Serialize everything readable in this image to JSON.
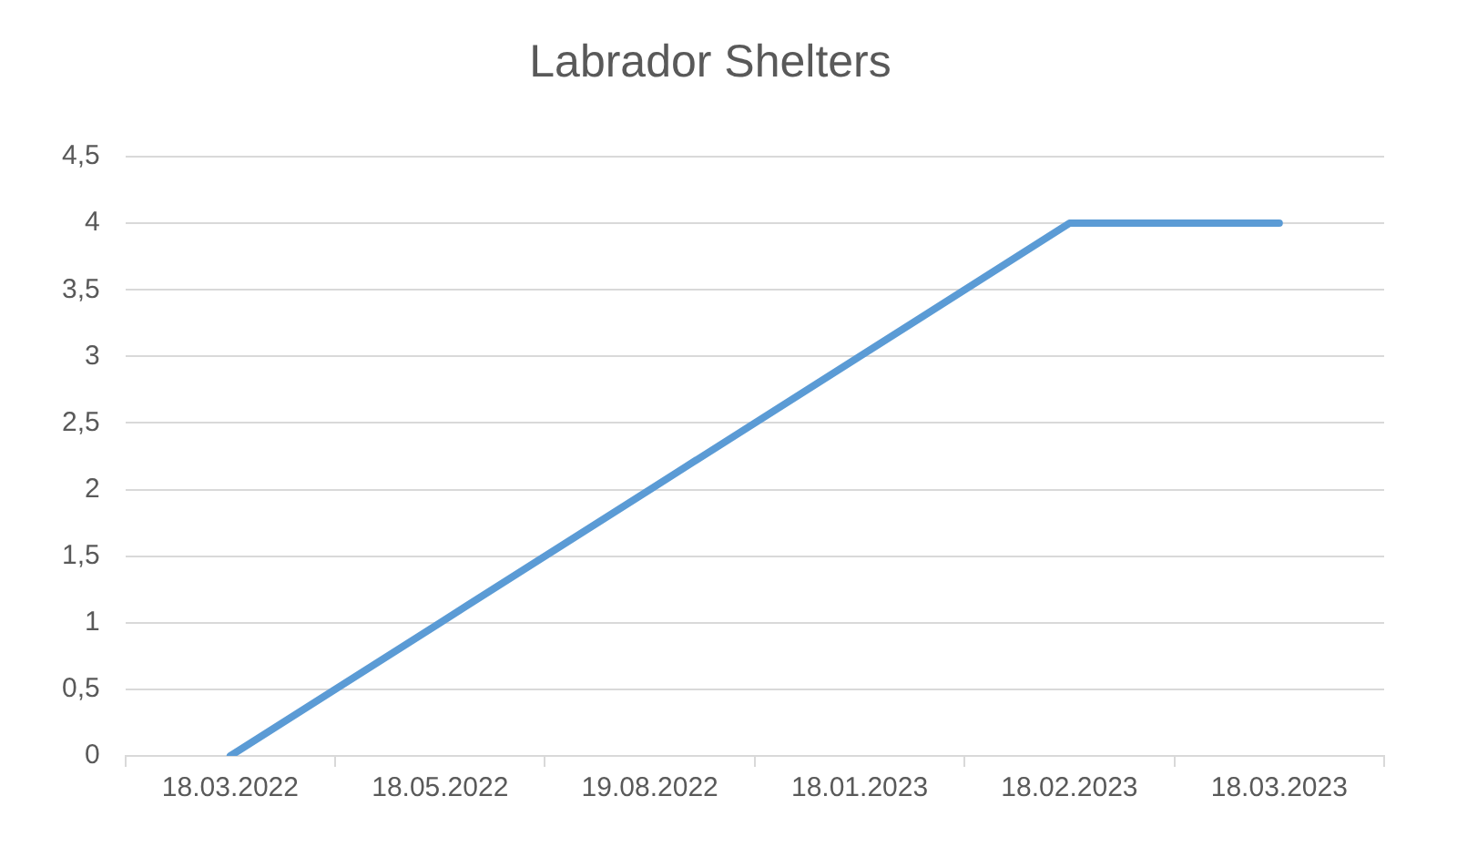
{
  "chart_data": {
    "type": "line",
    "title": "Labrador Shelters",
    "categories": [
      "18.03.2022",
      "18.05.2022",
      "19.08.2022",
      "18.01.2023",
      "18.02.2023",
      "18.03.2023"
    ],
    "series": [
      {
        "color": "#5b9bd5",
        "values": [
          0,
          1,
          2,
          3,
          4,
          4
        ]
      }
    ],
    "ylim": [
      0,
      4.5
    ],
    "yticks": [
      0,
      {
        "value": 0.5,
        "label": "0,5"
      },
      1,
      {
        "value": 1.5,
        "label": "1,5"
      },
      2,
      {
        "value": 2.5,
        "label": "2,5"
      },
      3,
      {
        "value": 3.5,
        "label": "3,5"
      },
      4,
      {
        "value": 4.5,
        "label": "4,5"
      }
    ],
    "grid": "y",
    "legend": false,
    "marker": "none",
    "line_style": "solid"
  }
}
